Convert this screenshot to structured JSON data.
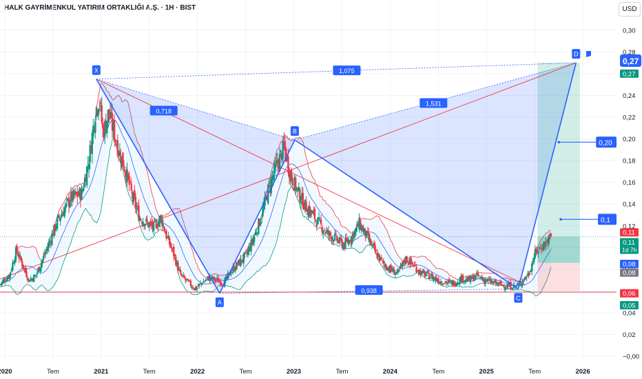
{
  "header": {
    "title": "HALK GAYRİMENKUL YATIRIM ORTAKLIĞI A.Ş. · 1H · BIST",
    "currency_button": "USD"
  },
  "chart_data": {
    "type": "candlestick",
    "instrument": "HALK GAYRİMENKUL YATIRIM ORTAKLIĞI A.Ş.",
    "interval": "1H",
    "exchange": "BIST",
    "currency": "USD",
    "ylim": [
      -0.005,
      0.31
    ],
    "yticks": [
      "0,30",
      "0,28",
      "0,26",
      "0,24",
      "0,22",
      "0,20",
      "0,18",
      "0,16",
      "0,14",
      "0,12",
      "0,10",
      "0,08",
      "0,06",
      "0,04",
      "0,02",
      "−0,00"
    ],
    "ytick_values": [
      0.3,
      0.28,
      0.26,
      0.24,
      0.22,
      0.2,
      0.18,
      0.16,
      0.14,
      0.12,
      0.1,
      0.08,
      0.06,
      0.04,
      0.02,
      0.0
    ],
    "xlim": [
      2019.95,
      2026.35
    ],
    "xticks": [
      {
        "label": "2020",
        "x": 2020.0,
        "bold": true
      },
      {
        "label": "Tem",
        "x": 2020.5,
        "bold": false
      },
      {
        "label": "2021",
        "x": 2021.0,
        "bold": true
      },
      {
        "label": "Tem",
        "x": 2021.5,
        "bold": false
      },
      {
        "label": "2022",
        "x": 2022.0,
        "bold": true
      },
      {
        "label": "Tem",
        "x": 2022.5,
        "bold": false
      },
      {
        "label": "2023",
        "x": 2023.0,
        "bold": true
      },
      {
        "label": "Tem",
        "x": 2023.5,
        "bold": false
      },
      {
        "label": "2024",
        "x": 2024.0,
        "bold": true
      },
      {
        "label": "Tem",
        "x": 2024.5,
        "bold": false
      },
      {
        "label": "2025",
        "x": 2025.0,
        "bold": true
      },
      {
        "label": "Tem",
        "x": 2025.5,
        "bold": false
      },
      {
        "label": "2026",
        "x": 2026.0,
        "bold": true
      }
    ],
    "price_path": [
      [
        2019.95,
        0.066
      ],
      [
        2020.05,
        0.075
      ],
      [
        2020.12,
        0.098
      ],
      [
        2020.18,
        0.085
      ],
      [
        2020.25,
        0.07
      ],
      [
        2020.32,
        0.074
      ],
      [
        2020.42,
        0.095
      ],
      [
        2020.55,
        0.125
      ],
      [
        2020.68,
        0.145
      ],
      [
        2020.8,
        0.15
      ],
      [
        2020.88,
        0.185
      ],
      [
        2020.94,
        0.225
      ],
      [
        2020.98,
        0.238
      ],
      [
        2021.02,
        0.205
      ],
      [
        2021.08,
        0.225
      ],
      [
        2021.12,
        0.21
      ],
      [
        2021.18,
        0.19
      ],
      [
        2021.25,
        0.172
      ],
      [
        2021.32,
        0.148
      ],
      [
        2021.4,
        0.128
      ],
      [
        2021.48,
        0.122
      ],
      [
        2021.55,
        0.118
      ],
      [
        2021.62,
        0.128
      ],
      [
        2021.68,
        0.11
      ],
      [
        2021.75,
        0.095
      ],
      [
        2021.82,
        0.075
      ],
      [
        2021.9,
        0.068
      ],
      [
        2021.98,
        0.062
      ],
      [
        2022.05,
        0.068
      ],
      [
        2022.12,
        0.072
      ],
      [
        2022.2,
        0.07
      ],
      [
        2022.28,
        0.068
      ],
      [
        2022.35,
        0.078
      ],
      [
        2022.42,
        0.085
      ],
      [
        2022.5,
        0.092
      ],
      [
        2022.58,
        0.108
      ],
      [
        2022.66,
        0.128
      ],
      [
        2022.74,
        0.155
      ],
      [
        2022.82,
        0.175
      ],
      [
        2022.9,
        0.192
      ],
      [
        2022.97,
        0.165
      ],
      [
        2023.05,
        0.15
      ],
      [
        2023.12,
        0.138
      ],
      [
        2023.2,
        0.13
      ],
      [
        2023.28,
        0.12
      ],
      [
        2023.36,
        0.112
      ],
      [
        2023.44,
        0.108
      ],
      [
        2023.52,
        0.102
      ],
      [
        2023.6,
        0.11
      ],
      [
        2023.68,
        0.122
      ],
      [
        2023.76,
        0.11
      ],
      [
        2023.85,
        0.095
      ],
      [
        2023.93,
        0.085
      ],
      [
        2024.0,
        0.08
      ],
      [
        2024.08,
        0.076
      ],
      [
        2024.16,
        0.09
      ],
      [
        2024.25,
        0.083
      ],
      [
        2024.33,
        0.076
      ],
      [
        2024.42,
        0.074
      ],
      [
        2024.5,
        0.07
      ],
      [
        2024.58,
        0.068
      ],
      [
        2024.66,
        0.067
      ],
      [
        2024.74,
        0.072
      ],
      [
        2024.82,
        0.07
      ],
      [
        2024.9,
        0.074
      ],
      [
        2024.98,
        0.07
      ],
      [
        2025.06,
        0.068
      ],
      [
        2025.14,
        0.066
      ],
      [
        2025.22,
        0.065
      ],
      [
        2025.3,
        0.064
      ],
      [
        2025.38,
        0.07
      ],
      [
        2025.44,
        0.076
      ],
      [
        2025.5,
        0.094
      ],
      [
        2025.56,
        0.1
      ],
      [
        2025.62,
        0.105
      ],
      [
        2025.67,
        0.11
      ]
    ],
    "pattern": {
      "name": "XABCD",
      "points": [
        {
          "label": "X",
          "x": 2020.95,
          "y": 0.255
        },
        {
          "label": "A",
          "x": 2022.23,
          "y": 0.058
        },
        {
          "label": "B",
          "x": 2023.01,
          "y": 0.199
        },
        {
          "label": "C",
          "x": 2025.33,
          "y": 0.062
        },
        {
          "label": "D",
          "x": 2025.93,
          "y": 0.27
        }
      ],
      "ratios": [
        {
          "label": "0,718",
          "x": 2021.65,
          "y": 0.226
        },
        {
          "label": "1,531",
          "x": 2024.45,
          "y": 0.233
        },
        {
          "label": "1,075",
          "x": 2023.55,
          "y": 0.263
        },
        {
          "label": "0,938",
          "x": 2023.78,
          "y": 0.061
        }
      ]
    },
    "target_callouts": [
      {
        "label": "0,20",
        "x": 2026.08,
        "y": 0.197
      },
      {
        "label": "0,1",
        "x": 2026.1,
        "y": 0.126
      }
    ],
    "horizontal_levels": [
      {
        "y": 0.059,
        "color": "#e0424f"
      },
      {
        "y": 0.11,
        "color": "#089981"
      }
    ],
    "position_tool": {
      "x1": 2025.53,
      "x2": 2025.97,
      "entry": 0.11,
      "target": 0.27,
      "stop": 0.06,
      "entry_lower_edge": 0.086
    },
    "price_labels": [
      {
        "text": "0,27",
        "y": 0.272,
        "bg": "#2962ff",
        "fg": "#ffffff",
        "large": true
      },
      {
        "text": "0,27",
        "y": 0.26,
        "bg": "#089981",
        "fg": "#ffffff",
        "large": false
      },
      {
        "text": "0,11",
        "y": 0.114,
        "bg": "#f23645",
        "fg": "#ffffff",
        "large": false
      },
      {
        "text": "0,11",
        "y": 0.105,
        "bg": "#089981",
        "fg": "#ffffff",
        "large": false,
        "sub": "1d 7h"
      },
      {
        "text": "0,08",
        "y": 0.085,
        "bg": "#2962ff",
        "fg": "#ffffff",
        "large": false
      },
      {
        "text": "0,08",
        "y": 0.077,
        "bg": "#787b86",
        "fg": "#ffffff",
        "large": false
      },
      {
        "text": "0,06",
        "y": 0.058,
        "bg": "#f23645",
        "fg": "#ffffff",
        "large": false
      },
      {
        "text": "0,05",
        "y": 0.047,
        "bg": "#089981",
        "fg": "#ffffff",
        "large": false
      }
    ],
    "colors": {
      "bull": "#089981",
      "bear": "#f23645",
      "pattern_line": "#2962ff",
      "pattern_fill": "rgba(41,98,255,0.17)",
      "bb_upper": "#f23645",
      "bb_basis": "#2962ff",
      "bb_lower": "#089981",
      "trendline": "#f23645"
    }
  }
}
